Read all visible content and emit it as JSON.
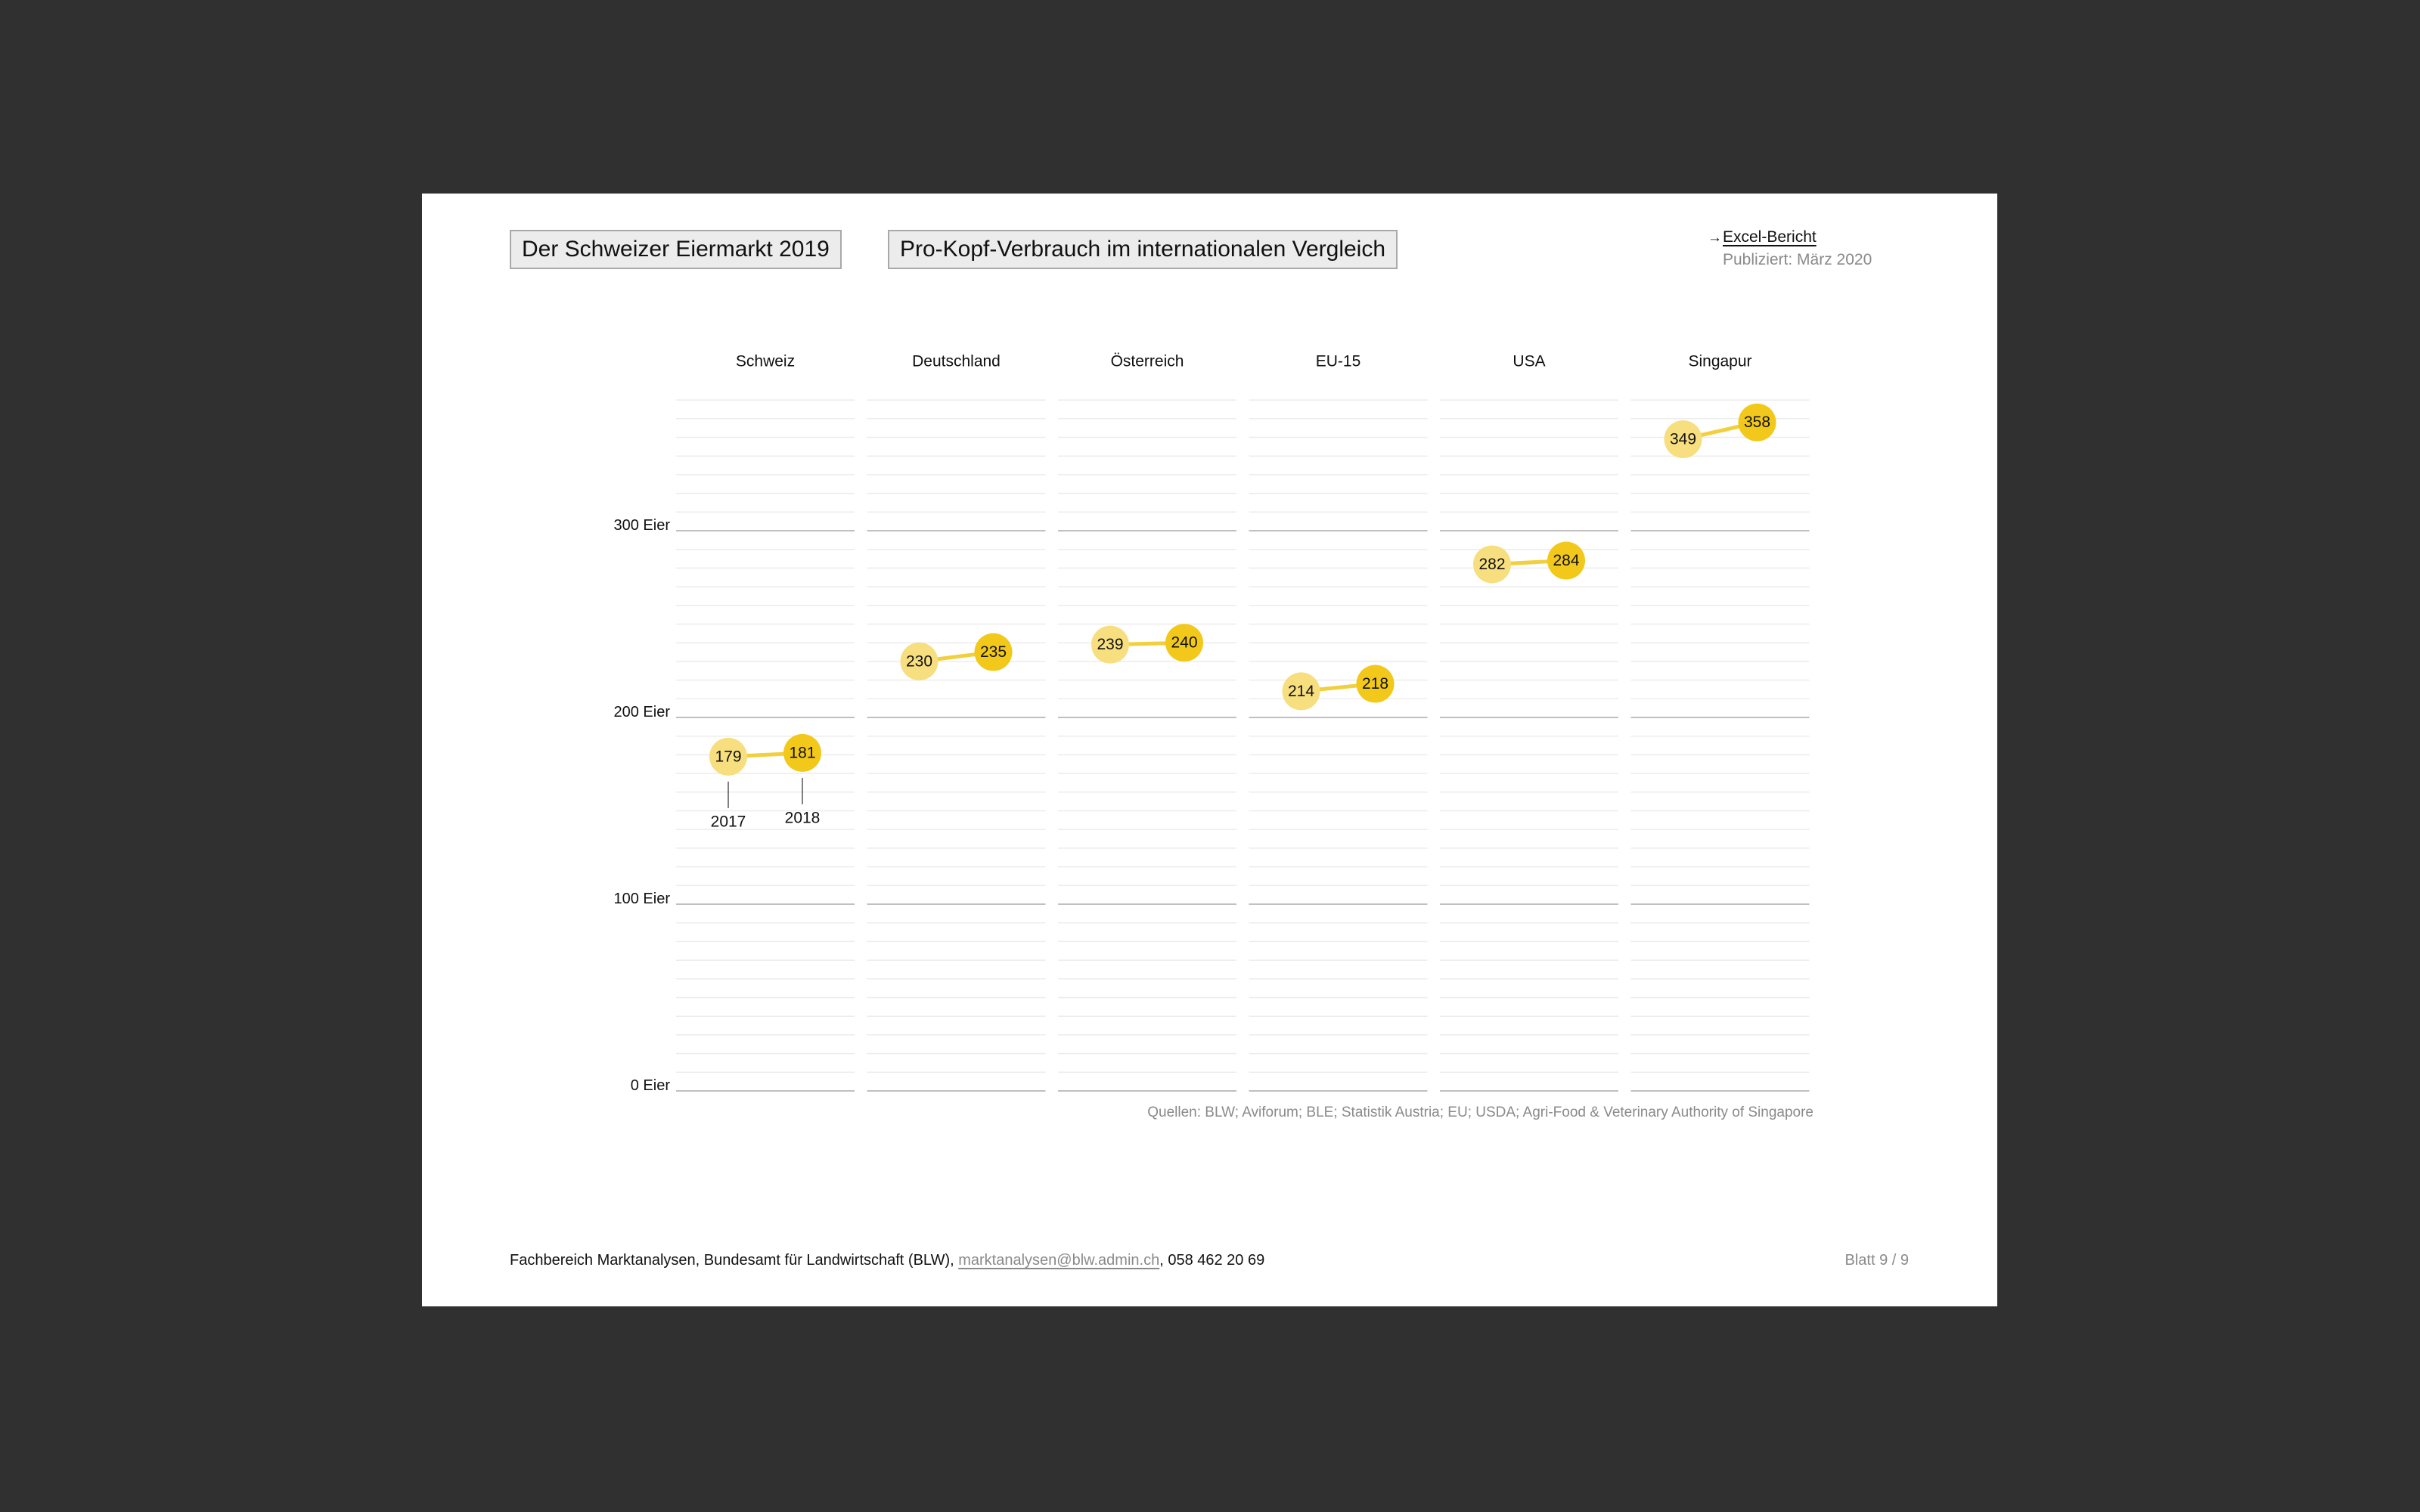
{
  "header": {
    "title": "Der Schweizer Eiermarkt 2019",
    "subtitle": "Pro-Kopf-Verbrauch im internationalen Vergleich",
    "link_arrow": "→",
    "link_label": "Excel-Bericht",
    "published": "Publiziert: März 2020"
  },
  "colors": {
    "background": "#303030",
    "page": "#ffffff",
    "dot_2017": "#f7de7e",
    "dot_2018": "#f2c81b",
    "connector": "#f2cf3c",
    "grid_major": "#c0c0c0",
    "grid_minor": "#ececec"
  },
  "chart_data": {
    "type": "scatter",
    "title": "Pro-Kopf-Verbrauch im internationalen Vergleich",
    "categories": [
      "Schweiz",
      "Deutschland",
      "Österreich",
      "EU-15",
      "USA",
      "Singapur"
    ],
    "series": [
      {
        "name": "2017",
        "values": [
          179,
          230,
          239,
          214,
          282,
          349
        ]
      },
      {
        "name": "2018",
        "values": [
          181,
          235,
          240,
          218,
          284,
          358
        ]
      }
    ],
    "y_ticks": [
      {
        "value": 0,
        "label": "0 Eier"
      },
      {
        "value": 100,
        "label": "100 Eier"
      },
      {
        "value": 200,
        "label": "200 Eier"
      },
      {
        "value": 300,
        "label": "300 Eier"
      }
    ],
    "ylim": [
      0,
      370
    ],
    "minor_grid_step": 10,
    "grid": true,
    "year_annotations": [
      "2017",
      "2018"
    ]
  },
  "source": "Quellen: BLW; Aviforum; BLE; Statistik Austria; EU; USDA; Agri-Food & Veterinary Authority of Singapore",
  "footer": {
    "text": "Fachbereich Marktanalysen, Bundesamt für Landwirtschaft (BLW), ",
    "email": "marktanalysen@blw.admin.ch",
    "phone": ", 058 462 20 69",
    "sheet": "Blatt 9 / 9"
  }
}
